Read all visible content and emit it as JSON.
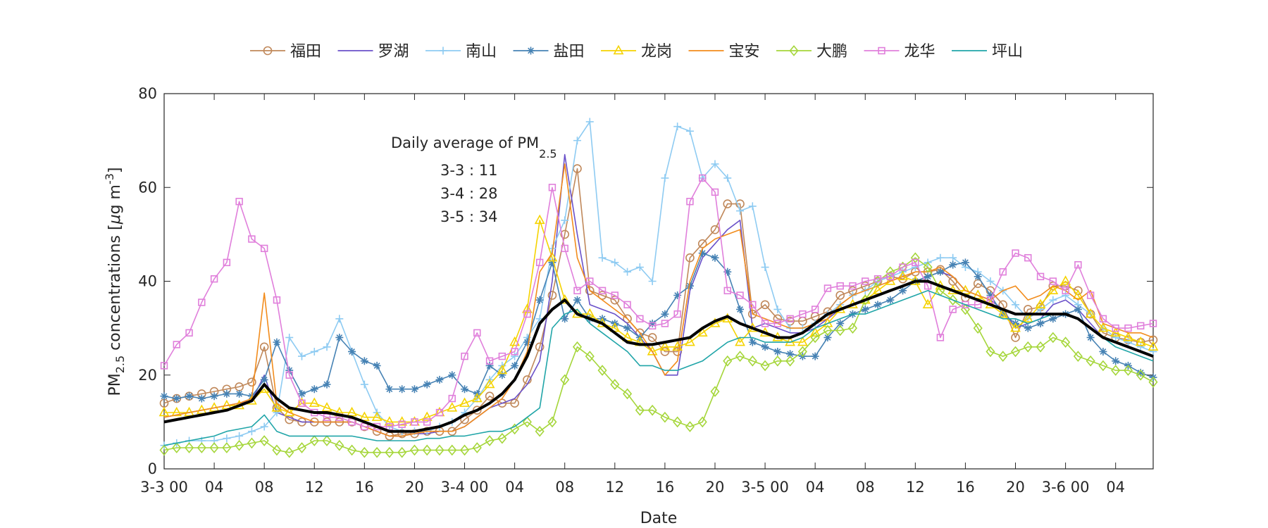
{
  "chart_data": {
    "type": "line",
    "xlabel": "Date",
    "ylabel": {
      "prefix": "PM",
      "sub": "2.5",
      "mid": " concentrations [",
      "mu": "μ",
      "unit": "g m",
      "sup": "-3",
      "suffix": "]"
    },
    "ylim": [
      0,
      80
    ],
    "yticks": [
      0,
      20,
      40,
      60,
      80
    ],
    "xlim": [
      0,
      79
    ],
    "xticks": [
      {
        "x": 0,
        "label": "3-3 00"
      },
      {
        "x": 4,
        "label": "04"
      },
      {
        "x": 8,
        "label": "08"
      },
      {
        "x": 12,
        "label": "12"
      },
      {
        "x": 16,
        "label": "16"
      },
      {
        "x": 20,
        "label": "20"
      },
      {
        "x": 24,
        "label": "3-4 00"
      },
      {
        "x": 28,
        "label": "04"
      },
      {
        "x": 32,
        "label": "08"
      },
      {
        "x": 36,
        "label": "12"
      },
      {
        "x": 40,
        "label": "16"
      },
      {
        "x": 44,
        "label": "20"
      },
      {
        "x": 48,
        "label": "3-5 00"
      },
      {
        "x": 52,
        "label": "04"
      },
      {
        "x": 56,
        "label": "08"
      },
      {
        "x": 60,
        "label": "12"
      },
      {
        "x": 64,
        "label": "16"
      },
      {
        "x": 68,
        "label": "20"
      },
      {
        "x": 72,
        "label": "3-6 00"
      },
      {
        "x": 76,
        "label": "04"
      }
    ],
    "grid": false,
    "legend_position": "top",
    "annotation": {
      "title_prefix": "Daily average of PM",
      "title_sub": "2.5",
      "lines": [
        "3-3 : 11",
        "3-4 : 28",
        "3-5 : 34"
      ]
    },
    "series": [
      {
        "name": "福田",
        "color": "#c0885a",
        "marker": "circle",
        "markers": true,
        "values": [
          14,
          15,
          15.5,
          16,
          16.5,
          17,
          17.5,
          18.5,
          26,
          13,
          10.5,
          10,
          10,
          10,
          10,
          10,
          9,
          8,
          7,
          7.5,
          7.5,
          8,
          8,
          8,
          10.5,
          12.5,
          15.5,
          14,
          14,
          19,
          26,
          37,
          50,
          64,
          38,
          37,
          36,
          32,
          29,
          28,
          25,
          25,
          45,
          48,
          51,
          56.5,
          56.5,
          33,
          35,
          32,
          31.5,
          31.5,
          32.5,
          33.5,
          37,
          38,
          39,
          40,
          41,
          40.5,
          42,
          42,
          42.5,
          40,
          36.5,
          39.5,
          38,
          35,
          28,
          34,
          34.5,
          39,
          39,
          38,
          33,
          29,
          28,
          27.5,
          27,
          27.5
        ]
      },
      {
        "name": "罗湖",
        "color": "#6a51c9",
        "marker": "none",
        "markers": false,
        "values": [
          11,
          11.5,
          12,
          12.5,
          13,
          13.5,
          14,
          14.5,
          20,
          12,
          11,
          10,
          10,
          10,
          10,
          10,
          9,
          8,
          7,
          7,
          7.5,
          7.5,
          8,
          8,
          9,
          11,
          13,
          14,
          15,
          18,
          23,
          40,
          67,
          50,
          35,
          34,
          33,
          31,
          28,
          25,
          20,
          20,
          38,
          45,
          48,
          51,
          53,
          30,
          31,
          30,
          29,
          29,
          30,
          32,
          34,
          35,
          36,
          37,
          38,
          39,
          40,
          41,
          42,
          41,
          38,
          37,
          36,
          34,
          30,
          31,
          32,
          35,
          36,
          34,
          31,
          28,
          27,
          26,
          25,
          24
        ]
      },
      {
        "name": "南山",
        "color": "#8ecbf2",
        "marker": "plus",
        "markers": true,
        "values": [
          5,
          5.5,
          6,
          6,
          6,
          6.5,
          7,
          8,
          9,
          12,
          28,
          24,
          25,
          26,
          32,
          25,
          18,
          12,
          9,
          8,
          8,
          8,
          9,
          10,
          12,
          15,
          19,
          22,
          24,
          28,
          32,
          47,
          53,
          70,
          74,
          45,
          44,
          42,
          43,
          40,
          62,
          73,
          72,
          62,
          65,
          62,
          55,
          56,
          43,
          34,
          30,
          30,
          31,
          33,
          35,
          37,
          38,
          40,
          41,
          42,
          43,
          44,
          45,
          45,
          43,
          42,
          40,
          38,
          35,
          32,
          34,
          36,
          37,
          35,
          33,
          30,
          28,
          27,
          26,
          25
        ]
      },
      {
        "name": "盐田",
        "color": "#4682b4",
        "marker": "asterisk",
        "markers": true,
        "values": [
          15.5,
          15,
          15.5,
          15,
          15.5,
          16,
          16,
          15.5,
          19,
          27,
          21,
          16,
          17,
          18,
          28,
          25,
          23,
          22,
          17,
          17,
          17,
          18,
          19,
          20,
          17,
          16,
          22,
          20,
          22,
          27,
          36,
          44,
          32,
          36,
          32,
          32,
          31,
          30,
          28,
          31,
          33,
          37,
          39,
          46,
          45,
          42,
          34,
          27,
          26,
          25,
          24.5,
          24,
          24,
          28,
          31,
          33,
          34,
          35,
          36,
          38,
          40,
          41,
          42,
          43.5,
          44,
          41,
          37,
          33,
          31,
          30,
          31,
          32,
          33,
          34,
          28,
          25,
          23,
          22,
          20.5,
          19.5
        ]
      },
      {
        "name": "龙岗",
        "color": "#f5d300",
        "marker": "triangle",
        "markers": true,
        "values": [
          12,
          12,
          12,
          12.5,
          13,
          13.5,
          13.5,
          14.5,
          17,
          13,
          12,
          14,
          14,
          13,
          12,
          12,
          11,
          11,
          10,
          10,
          10,
          11,
          12,
          13,
          14,
          15,
          18,
          21,
          27,
          34,
          53,
          45,
          36,
          33,
          33,
          31,
          30,
          28,
          27,
          25,
          26,
          26,
          27,
          29,
          31,
          32,
          27,
          30,
          29,
          28,
          27,
          27,
          29,
          31,
          34,
          35,
          36,
          38,
          40,
          41,
          40,
          35,
          39,
          38,
          38,
          37,
          35,
          33,
          30,
          32,
          35,
          38,
          40,
          37,
          33,
          30,
          29,
          28,
          27,
          26
        ]
      },
      {
        "name": "宝安",
        "color": "#f28c1c",
        "marker": "none",
        "markers": false,
        "values": [
          11,
          11.5,
          12,
          12.5,
          13,
          13.5,
          14,
          15,
          37.5,
          14,
          12,
          11,
          10,
          10,
          10,
          10,
          9,
          8,
          7,
          7,
          7.5,
          8,
          8,
          8,
          9,
          11,
          13,
          15,
          19,
          25,
          42,
          46,
          65,
          45,
          38,
          36,
          34,
          32,
          29,
          25,
          20,
          23,
          40,
          47,
          49,
          50,
          51,
          33,
          32,
          31,
          30,
          30,
          31,
          32,
          35,
          37,
          38,
          39,
          40,
          41,
          42,
          42,
          43,
          41,
          38,
          37,
          36,
          38,
          39,
          36,
          37,
          39,
          38,
          36,
          38,
          31,
          30,
          29,
          29,
          28
        ]
      },
      {
        "name": "大鹏",
        "color": "#a5d63a",
        "marker": "diamond",
        "markers": true,
        "values": [
          4,
          4.5,
          4.5,
          4.5,
          4.5,
          4.5,
          5,
          5.5,
          6,
          4,
          3.5,
          4.5,
          6,
          6,
          5,
          4,
          3.5,
          3.5,
          3.5,
          3.5,
          4,
          4,
          4,
          4,
          4,
          4.5,
          6,
          6.5,
          8.5,
          10,
          8,
          10,
          19,
          26,
          24,
          21,
          18,
          16,
          12.5,
          12.5,
          11,
          10,
          9,
          10,
          16.5,
          23,
          24,
          23,
          22,
          23,
          23,
          25,
          28,
          29.5,
          29.5,
          30,
          36,
          40,
          42,
          43,
          45,
          43,
          38,
          36,
          34,
          30,
          25,
          24,
          25,
          26,
          26,
          28,
          27,
          24,
          23,
          22,
          21,
          21,
          20,
          18.5
        ]
      },
      {
        "name": "龙华",
        "color": "#e07fdb",
        "marker": "square",
        "markers": true,
        "values": [
          22,
          26.5,
          29,
          35.5,
          40.5,
          44,
          57,
          49,
          47,
          36,
          20,
          14,
          12,
          11,
          11,
          10,
          9,
          9,
          9,
          9.5,
          10,
          10,
          12,
          15,
          24,
          29,
          23,
          24,
          25,
          33,
          44,
          60,
          47,
          38,
          40,
          38,
          37,
          35,
          32,
          30.5,
          31,
          33,
          57,
          62,
          59,
          38,
          37,
          35,
          31,
          31,
          32,
          33,
          34,
          38.5,
          39,
          39,
          40,
          40.5,
          41,
          43,
          44,
          39,
          28,
          34,
          35,
          35,
          36,
          42,
          46,
          45,
          41,
          40,
          38,
          43.5,
          37,
          32,
          30,
          30,
          30.5,
          31
        ]
      },
      {
        "name": "坪山",
        "color": "#20a5a8",
        "marker": "none",
        "markers": false,
        "values": [
          5,
          5.5,
          6,
          6.5,
          7,
          8,
          8.5,
          9,
          11.5,
          8,
          7,
          7,
          7,
          7,
          7,
          7,
          6.5,
          6,
          6,
          6,
          6,
          6.5,
          6.5,
          7,
          7,
          7.5,
          8,
          8,
          9,
          11,
          13,
          30,
          33,
          34,
          31,
          29,
          27,
          25,
          22,
          22,
          21,
          21,
          22,
          23,
          25,
          27,
          28,
          28,
          27,
          27,
          27,
          28,
          30,
          31,
          32,
          33,
          33,
          34,
          35,
          36,
          37,
          38,
          37,
          36,
          35,
          34,
          33,
          32,
          32,
          31,
          32,
          33,
          33,
          32,
          30,
          28,
          26,
          25,
          24,
          23
        ]
      },
      {
        "name": "",
        "color": "#000000",
        "marker": "none",
        "markers": false,
        "thick": true,
        "values": [
          10,
          10.5,
          11,
          11.5,
          12,
          12.5,
          13.5,
          14.5,
          18,
          15,
          13,
          12.5,
          12,
          12,
          11.5,
          11,
          10,
          9,
          8,
          8,
          8,
          8.5,
          9,
          10,
          11.5,
          12.5,
          14,
          16,
          19,
          24,
          31,
          34,
          36,
          33,
          32,
          31,
          29,
          27,
          26.5,
          26.5,
          27,
          27.5,
          28,
          30,
          31.5,
          32.5,
          31,
          30,
          29,
          28,
          28,
          29,
          31,
          33,
          34,
          35,
          36,
          37,
          38,
          39,
          40,
          40,
          39,
          38,
          37,
          36,
          35,
          34,
          33,
          33,
          33,
          33,
          33,
          32,
          30,
          28,
          27,
          26,
          25,
          24
        ]
      }
    ]
  }
}
